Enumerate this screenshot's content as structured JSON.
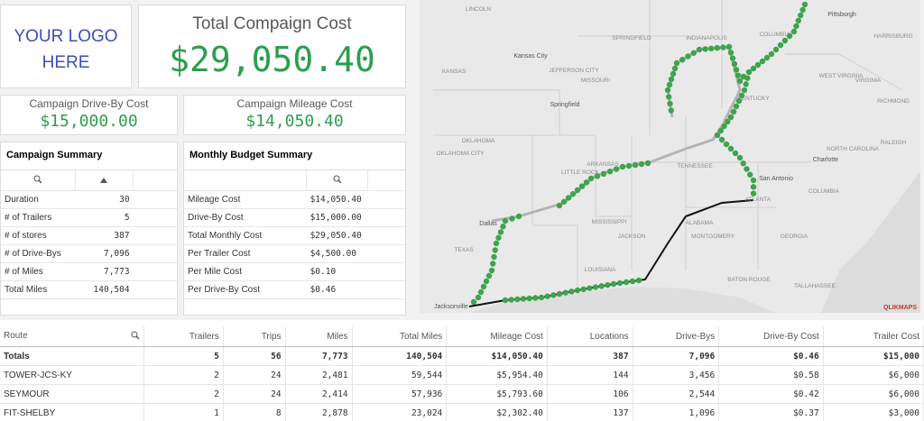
{
  "logo": {
    "lines": [
      "YOUR LOGO",
      "HERE"
    ]
  },
  "kpis": {
    "total": {
      "label": "Total Compaign Cost",
      "value": "$29,050.40"
    },
    "drive_by": {
      "label": "Campaign Drive-By Cost",
      "value": "$15,000.00"
    },
    "mileage": {
      "label": "Campaign Mileage Cost",
      "value": "$14,050.40"
    }
  },
  "campaign_summary": {
    "title": "Campaign Summary",
    "rows": [
      [
        "Duration",
        "30"
      ],
      [
        "# of Trailers",
        "5"
      ],
      [
        "# of stores",
        "387"
      ],
      [
        "# of Drive-Bys",
        "7,096"
      ],
      [
        "# of Miles",
        "7,773"
      ],
      [
        "Total Miles",
        "140,504"
      ]
    ]
  },
  "monthly_budget": {
    "title": "Monthly Budget Summary",
    "rows": [
      [
        "Mileage Cost",
        "$14,050.40"
      ],
      [
        "Drive-By Cost",
        "$15,000.00"
      ],
      [
        "Total Monthly Cost",
        "$29,050.40"
      ],
      [
        "Per Trailer Cost",
        "$4,500.00"
      ],
      [
        "Per Mile Cost",
        "$0.10"
      ],
      [
        "Per Drive-By Cost",
        "$0.46"
      ]
    ]
  },
  "map": {
    "labels": [
      "LINCOLN",
      "SPRINGFIELD",
      "Kansas City",
      "KANSAS",
      "JEFFERSON CITY",
      "MISSOURI",
      "Springfield",
      "INDIANAPOLIS",
      "COLUMBUS",
      "Pittsburgh",
      "HARRISBURG",
      "WEST VIRGINIA",
      "VIRGINIA",
      "RICHMOND",
      "KENTUCKY",
      "OKLAHOMA",
      "OKLAHOMA CITY",
      "LITTLE ROCK",
      "ARKANSAS",
      "TENNESSEE",
      "Charlotte",
      "RALEIGH",
      "NORTH CAROLINA",
      "COLUMBIA",
      "ATLANTA",
      "Dallas",
      "MISSISSIPPI",
      "ALABAMA",
      "TEXAS",
      "JACKSON",
      "MONTGOMERY",
      "GEORGIA",
      "LOUISIANA",
      "BATON ROUGE",
      "TALLAHASSEE",
      "Jacksonville",
      "San Antonio"
    ],
    "attribution": "QLIKMAPS"
  },
  "route_table": {
    "columns": [
      "Route",
      "Trailers",
      "Trips",
      "Miles",
      "Total Miles",
      "Mileage Cost",
      "Locations",
      "Drive-Bys",
      "Drive-By Cost",
      "Trailer Cost"
    ],
    "totals": [
      "Totals",
      "5",
      "56",
      "7,773",
      "140,504",
      "$14,050.40",
      "387",
      "7,096",
      "$0.46",
      "$15,000"
    ],
    "rows": [
      [
        "TOWER-JCS-KY",
        "2",
        "24",
        "2,481",
        "59,544",
        "$5,954.40",
        "144",
        "3,456",
        "$0.58",
        "$6,000"
      ],
      [
        "SEYMOUR",
        "2",
        "24",
        "2,414",
        "57,936",
        "$5,793.60",
        "106",
        "2,544",
        "$0.42",
        "$6,000"
      ],
      [
        "FIT-SHELBY",
        "1",
        "8",
        "2,878",
        "23,024",
        "$2,302.40",
        "137",
        "1,096",
        "$0.37",
        "$3,000"
      ]
    ]
  }
}
